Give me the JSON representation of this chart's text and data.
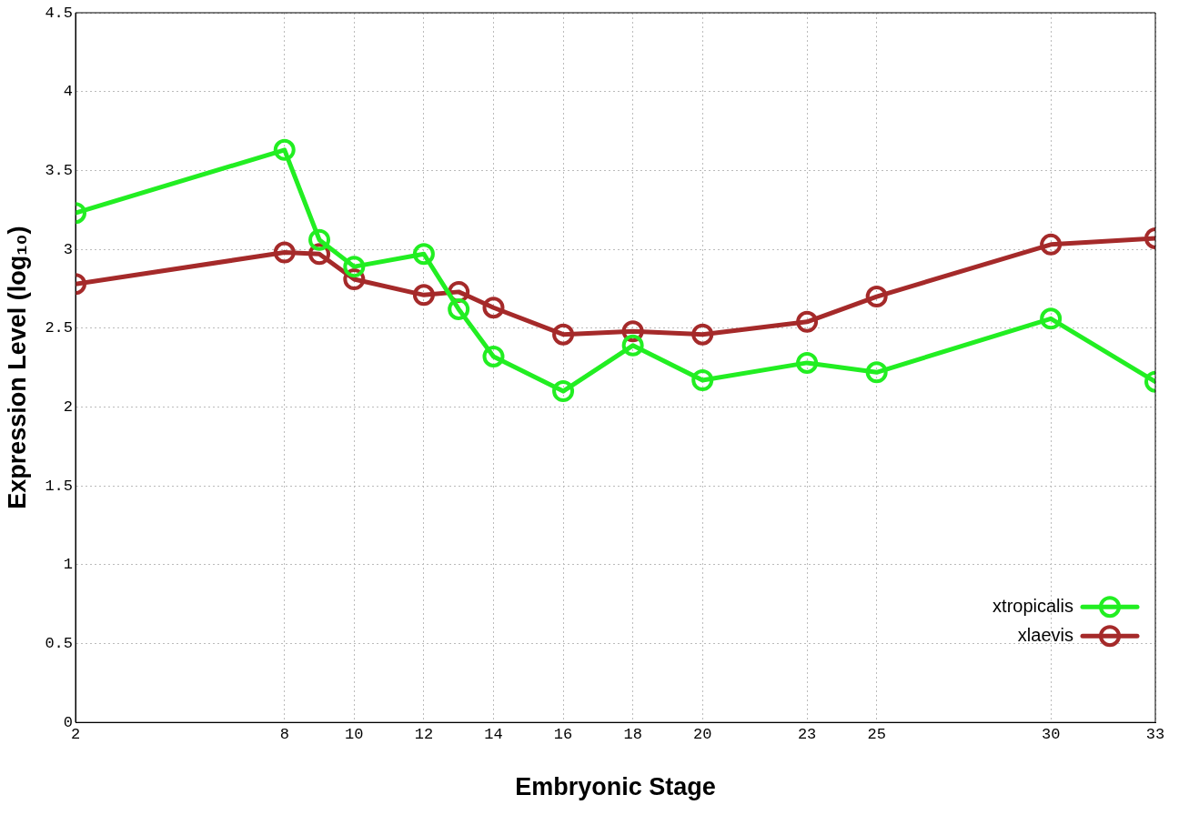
{
  "chart_data": {
    "type": "line",
    "xlabel": "Embryonic Stage",
    "ylabel": "Expression Level (log₁₀)",
    "xlim": [
      2,
      33
    ],
    "xticks": [
      2,
      8,
      10,
      12,
      14,
      16,
      18,
      20,
      23,
      25,
      30,
      33
    ],
    "ylim": [
      0,
      4.5
    ],
    "yticks": [
      0,
      0.5,
      1,
      1.5,
      2,
      2.5,
      3,
      3.5,
      4,
      4.5
    ],
    "grid": true,
    "legend": "bottom right",
    "marker": "circle",
    "line_style": "solid",
    "x": [
      2,
      8,
      9,
      10,
      12,
      13,
      14,
      16,
      18,
      20,
      23,
      25,
      30,
      33
    ],
    "series": [
      {
        "name": "xtropicalis",
        "color": "#22ee22",
        "values": [
          3.23,
          3.63,
          3.06,
          2.89,
          2.97,
          2.62,
          2.32,
          2.1,
          2.39,
          2.17,
          2.28,
          2.22,
          2.56,
          2.16
        ]
      },
      {
        "name": "xlaevis",
        "color": "#a52a2a",
        "values": [
          2.78,
          2.98,
          2.97,
          2.81,
          2.71,
          2.73,
          2.63,
          2.46,
          2.48,
          2.46,
          2.54,
          2.7,
          3.03,
          3.07
        ]
      }
    ]
  }
}
